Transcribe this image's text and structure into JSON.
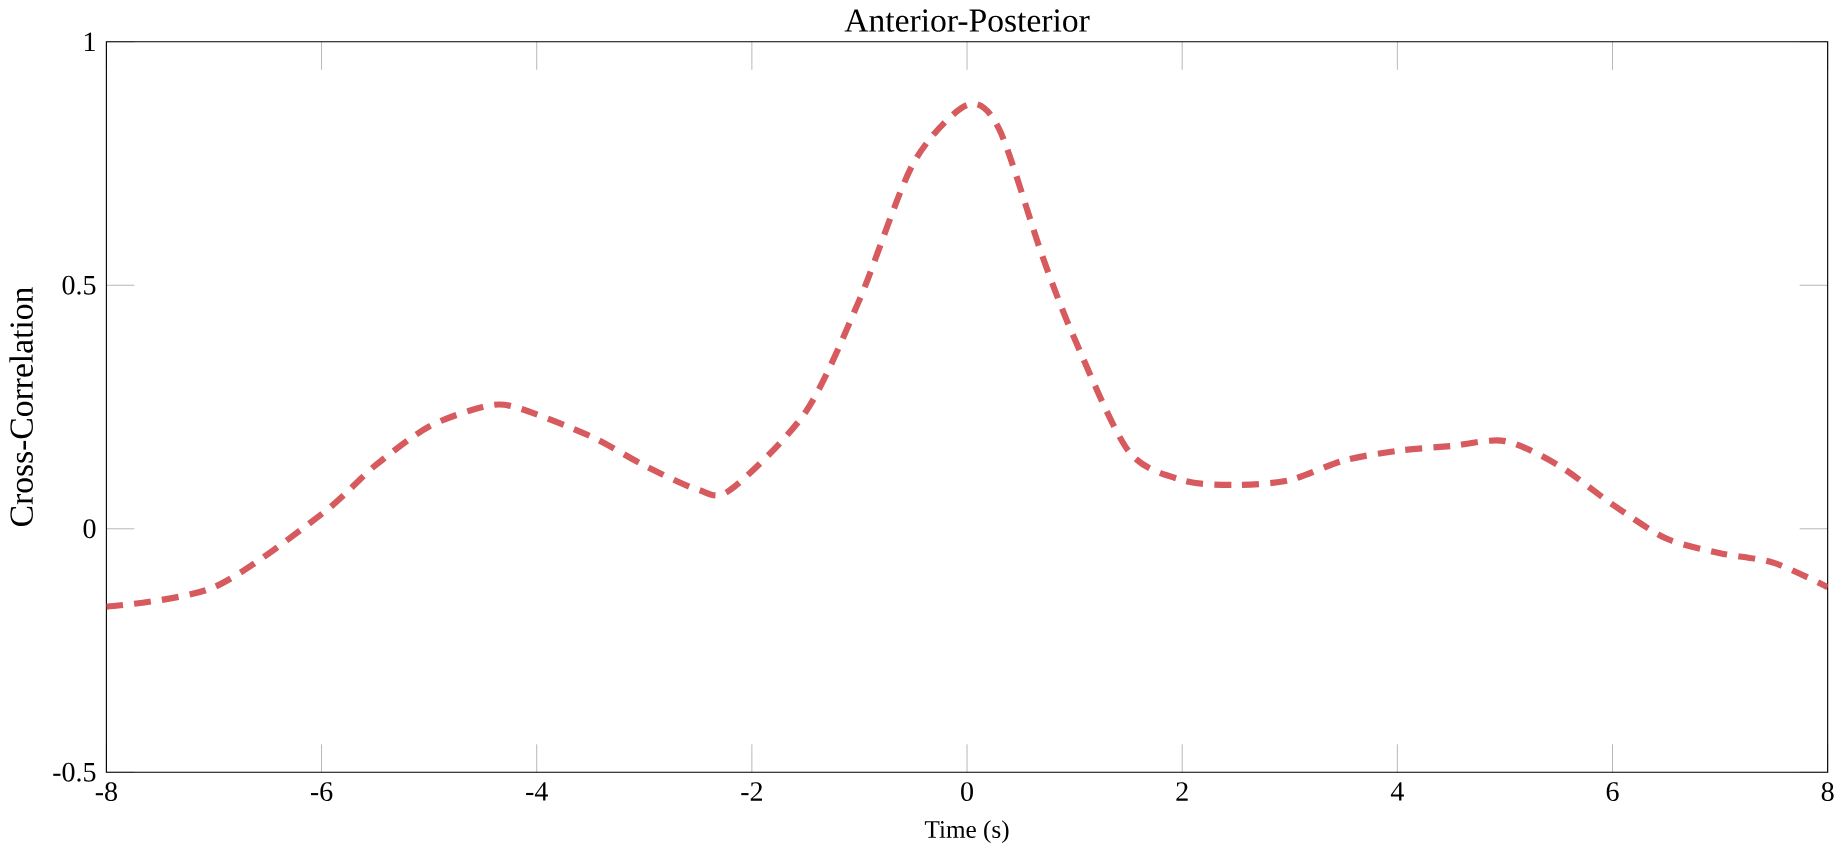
{
  "chart_data": {
    "type": "line",
    "title": "Anterior-Posterior",
    "xlabel": "Time (s)",
    "ylabel": "Cross-Correlation",
    "xlim": [
      -8,
      8
    ],
    "xticks": [
      -8,
      -6,
      -4,
      -2,
      0,
      2,
      4,
      6,
      8
    ],
    "ylim": [
      -0.5,
      1
    ],
    "yticks": [
      -0.5,
      0,
      0.5,
      1
    ],
    "grid": false,
    "marker": "none",
    "line_style": "dashed",
    "series": [
      {
        "color": "#d65a5e",
        "x": [
          -8,
          -7,
          -6,
          -5.5,
          -5,
          -4.5,
          -4.2,
          -3.5,
          -3,
          -2.5,
          -2.2,
          -1.5,
          -1,
          -0.5,
          0,
          0.3,
          0.7,
          1,
          1.5,
          2,
          2.5,
          3,
          3.5,
          4,
          4.5,
          5,
          5.5,
          6,
          6.5,
          7,
          7.5,
          8
        ],
        "values": [
          -0.16,
          -0.12,
          0.03,
          0.13,
          0.21,
          0.25,
          0.25,
          0.19,
          0.13,
          0.08,
          0.08,
          0.24,
          0.47,
          0.75,
          0.87,
          0.82,
          0.56,
          0.39,
          0.16,
          0.1,
          0.09,
          0.1,
          0.14,
          0.16,
          0.17,
          0.18,
          0.13,
          0.05,
          -0.02,
          -0.05,
          -0.07,
          -0.12
        ]
      }
    ]
  }
}
